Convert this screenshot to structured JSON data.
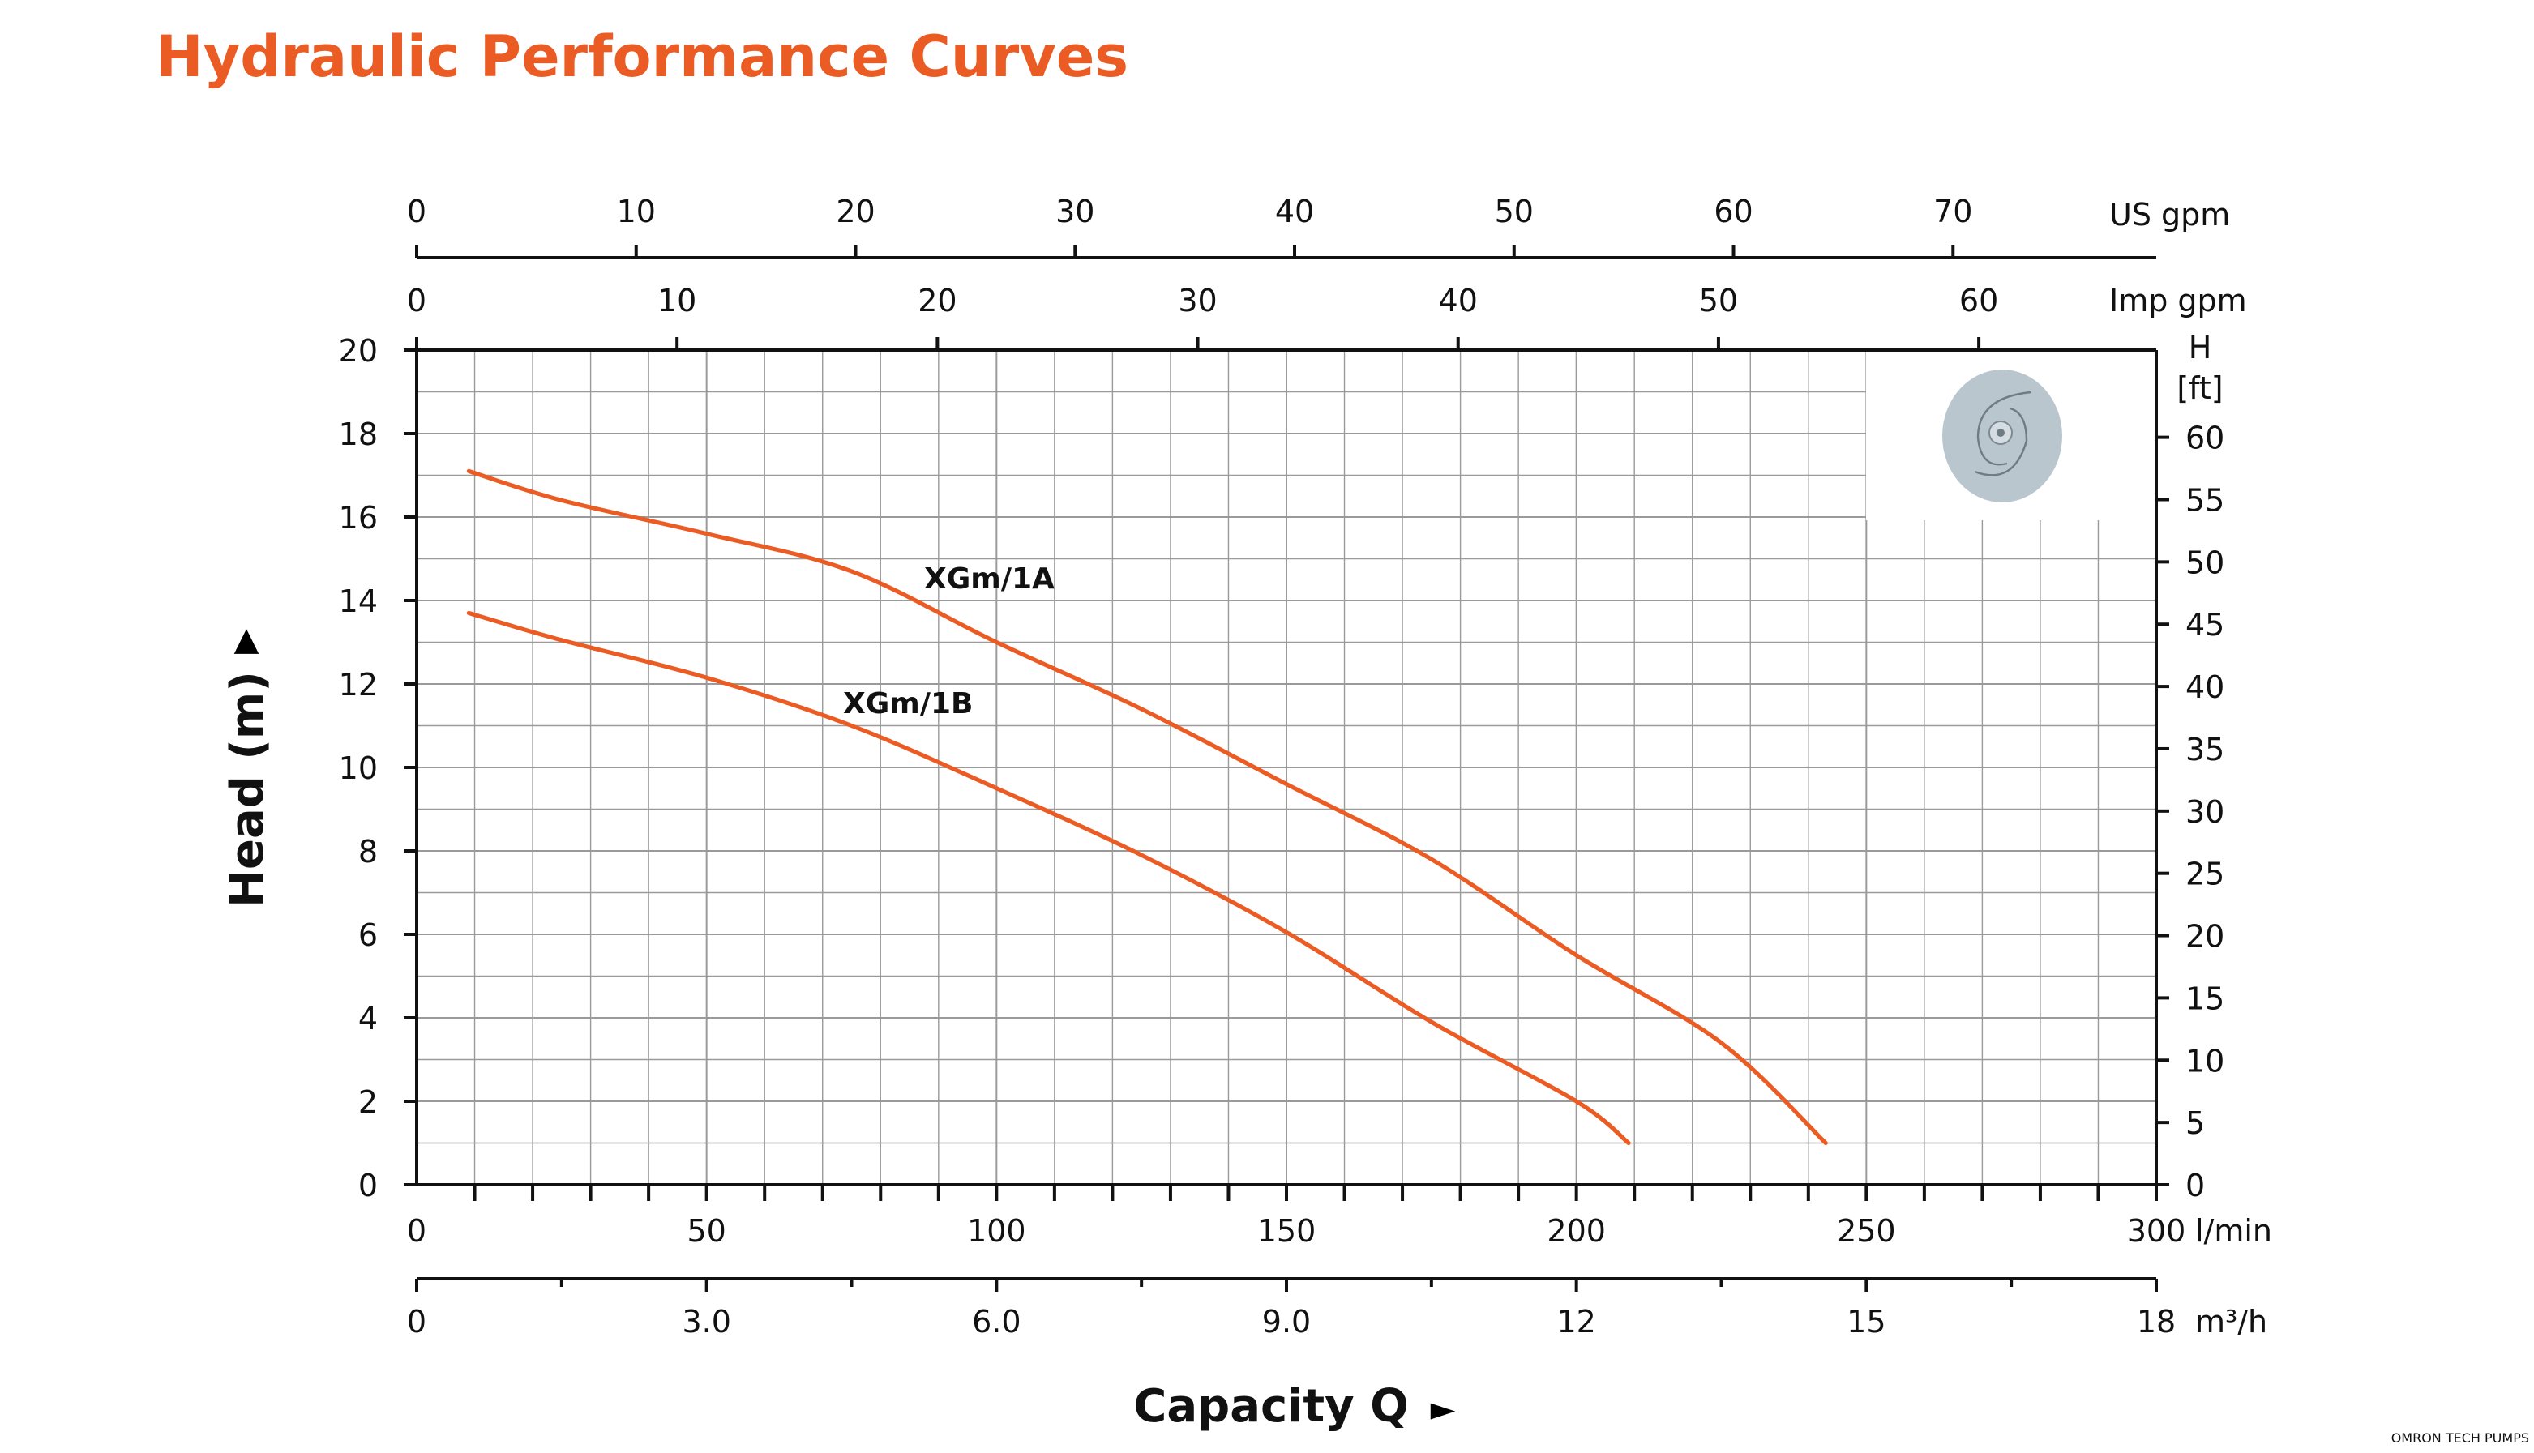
{
  "title": "Hydraulic Performance Curves",
  "footer_brand": "OMRON TECH PUMPS",
  "colors": {
    "title": "#EB5C24",
    "curve": "#EB5C24",
    "grid": "#9a9a9a",
    "axis": "#111111"
  },
  "impeller_icon": "pump-impeller-image",
  "chart_data": {
    "type": "line",
    "title": "Hydraulic Performance Curves",
    "xlabel": "Capacity Q",
    "ylabel": "Head (m)",
    "xlim": [
      0,
      300
    ],
    "ylim": [
      0,
      20
    ],
    "grid": true,
    "x_unit": "l/min",
    "x_ticks": [
      "0",
      "50",
      "100",
      "150",
      "200",
      "250",
      "300"
    ],
    "y_ticks": [
      "0",
      "2",
      "4",
      "6",
      "8",
      "10",
      "12",
      "14",
      "16",
      "18",
      "20"
    ],
    "secondary_axes": {
      "us_gpm": {
        "unit": "US gpm",
        "ticks": [
          "0",
          "10",
          "20",
          "30",
          "40",
          "50",
          "60",
          "70"
        ]
      },
      "imp_gpm": {
        "unit": "Imp gpm",
        "ticks": [
          "0",
          "10",
          "20",
          "30",
          "40",
          "50",
          "60"
        ]
      },
      "m3h": {
        "unit": "m³/h",
        "ticks": [
          "0",
          "3.0",
          "6.0",
          "9.0",
          "12",
          "15",
          "18"
        ]
      },
      "head_ft": {
        "unit_line1": "H",
        "unit_line2": "[ft]",
        "ticks": [
          "0",
          "5",
          "10",
          "15",
          "20",
          "25",
          "30",
          "35",
          "40",
          "45",
          "50",
          "55",
          "60"
        ]
      }
    },
    "series": [
      {
        "name": "XGm/1A",
        "x": [
          9,
          25,
          50,
          75,
          100,
          125,
          150,
          175,
          200,
          225,
          243
        ],
        "y": [
          17.1,
          16.4,
          15.6,
          14.7,
          13.0,
          11.4,
          9.6,
          7.8,
          5.5,
          3.4,
          1.0
        ]
      },
      {
        "name": "XGm/1B",
        "x": [
          9,
          25,
          50,
          75,
          100,
          125,
          150,
          175,
          200,
          209
        ],
        "y": [
          13.7,
          13.05,
          12.15,
          11.0,
          9.5,
          7.9,
          6.05,
          3.9,
          2.0,
          1.0
        ]
      }
    ]
  }
}
